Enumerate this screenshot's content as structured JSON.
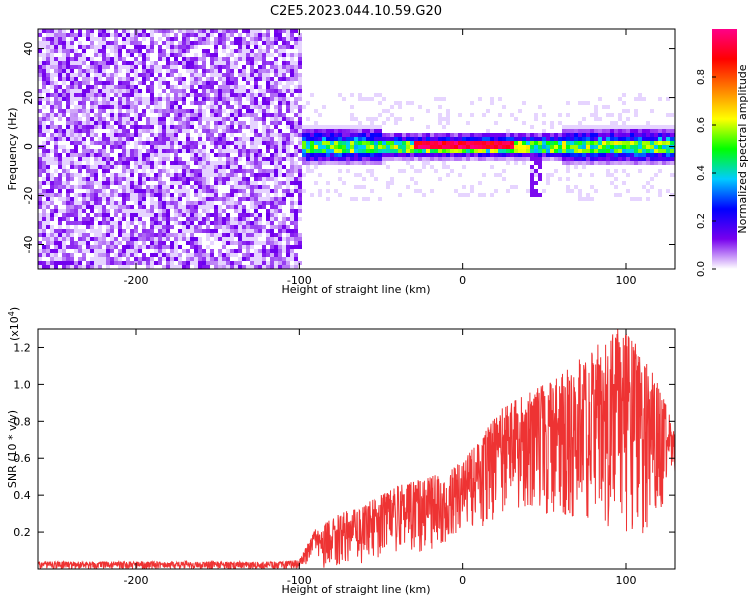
{
  "title": "C2E5.2023.044.10.59.G20",
  "chart_data": [
    {
      "type": "heatmap",
      "xlabel": "Height of straight line (km)",
      "ylabel": "Frequency (Hz)",
      "xlim": [
        -260,
        130
      ],
      "ylim": [
        -50,
        48
      ],
      "x_ticks": [
        -200,
        -100,
        0,
        100
      ],
      "y_ticks": [
        -40,
        -20,
        0,
        20,
        40
      ],
      "grid": false,
      "colorbar": {
        "label": "Normalized spectral amplitude",
        "range": [
          0,
          1
        ],
        "ticks": [
          "0.0",
          "0.2",
          "0.4",
          "0.6",
          "0.8"
        ],
        "colormap": [
          "#ffffff",
          "#7700ee",
          "#0000ff",
          "#00ccff",
          "#00ff00",
          "#ffff00",
          "#ff7f00",
          "#ff0000",
          "#ff0088"
        ]
      },
      "regions": [
        {
          "label": "noise",
          "x_range": [
            -260,
            -100
          ],
          "y_range": [
            -50,
            48
          ],
          "dominant_color": "#7f00ff",
          "mean_amplitude": 0.05
        },
        {
          "label": "signal band",
          "x_range": [
            -100,
            130
          ],
          "center_freq_hz": 0,
          "half_width_hz": 8,
          "peak_amplitude": 1.0
        },
        {
          "label": "peak",
          "x_range": [
            -25,
            30
          ],
          "center_freq_hz": 1,
          "color": "#ff0000"
        }
      ]
    },
    {
      "type": "line",
      "series": [
        {
          "color": "#ee3333"
        }
      ],
      "xlabel": "Height of straight line (km)",
      "ylabel": "SNR (10 * v/v)",
      "y_multiplier_label": "(x10",
      "y_multiplier_exp": "4",
      "xlim": [
        -260,
        130
      ],
      "ylim": [
        0,
        1.3
      ],
      "x_ticks": [
        -200,
        -100,
        0,
        100
      ],
      "y_ticks": [
        0.2,
        0.4,
        0.6,
        0.8,
        1.0,
        1.2
      ],
      "envelope": {
        "x": [
          -260,
          -200,
          -110,
          -100,
          -90,
          -75,
          -60,
          -40,
          -20,
          0,
          10,
          25,
          40,
          60,
          80,
          95,
          105,
          120,
          130
        ],
        "low": [
          0.0,
          0.0,
          0.0,
          0.0,
          0.0,
          0.02,
          0.03,
          0.08,
          0.1,
          0.2,
          0.22,
          0.3,
          0.3,
          0.3,
          0.25,
          0.15,
          0.1,
          0.3,
          0.5
        ],
        "high": [
          0.04,
          0.04,
          0.04,
          0.05,
          0.22,
          0.3,
          0.35,
          0.45,
          0.5,
          0.58,
          0.7,
          0.88,
          0.95,
          1.05,
          1.2,
          1.3,
          1.25,
          1.0,
          0.75
        ]
      }
    }
  ]
}
